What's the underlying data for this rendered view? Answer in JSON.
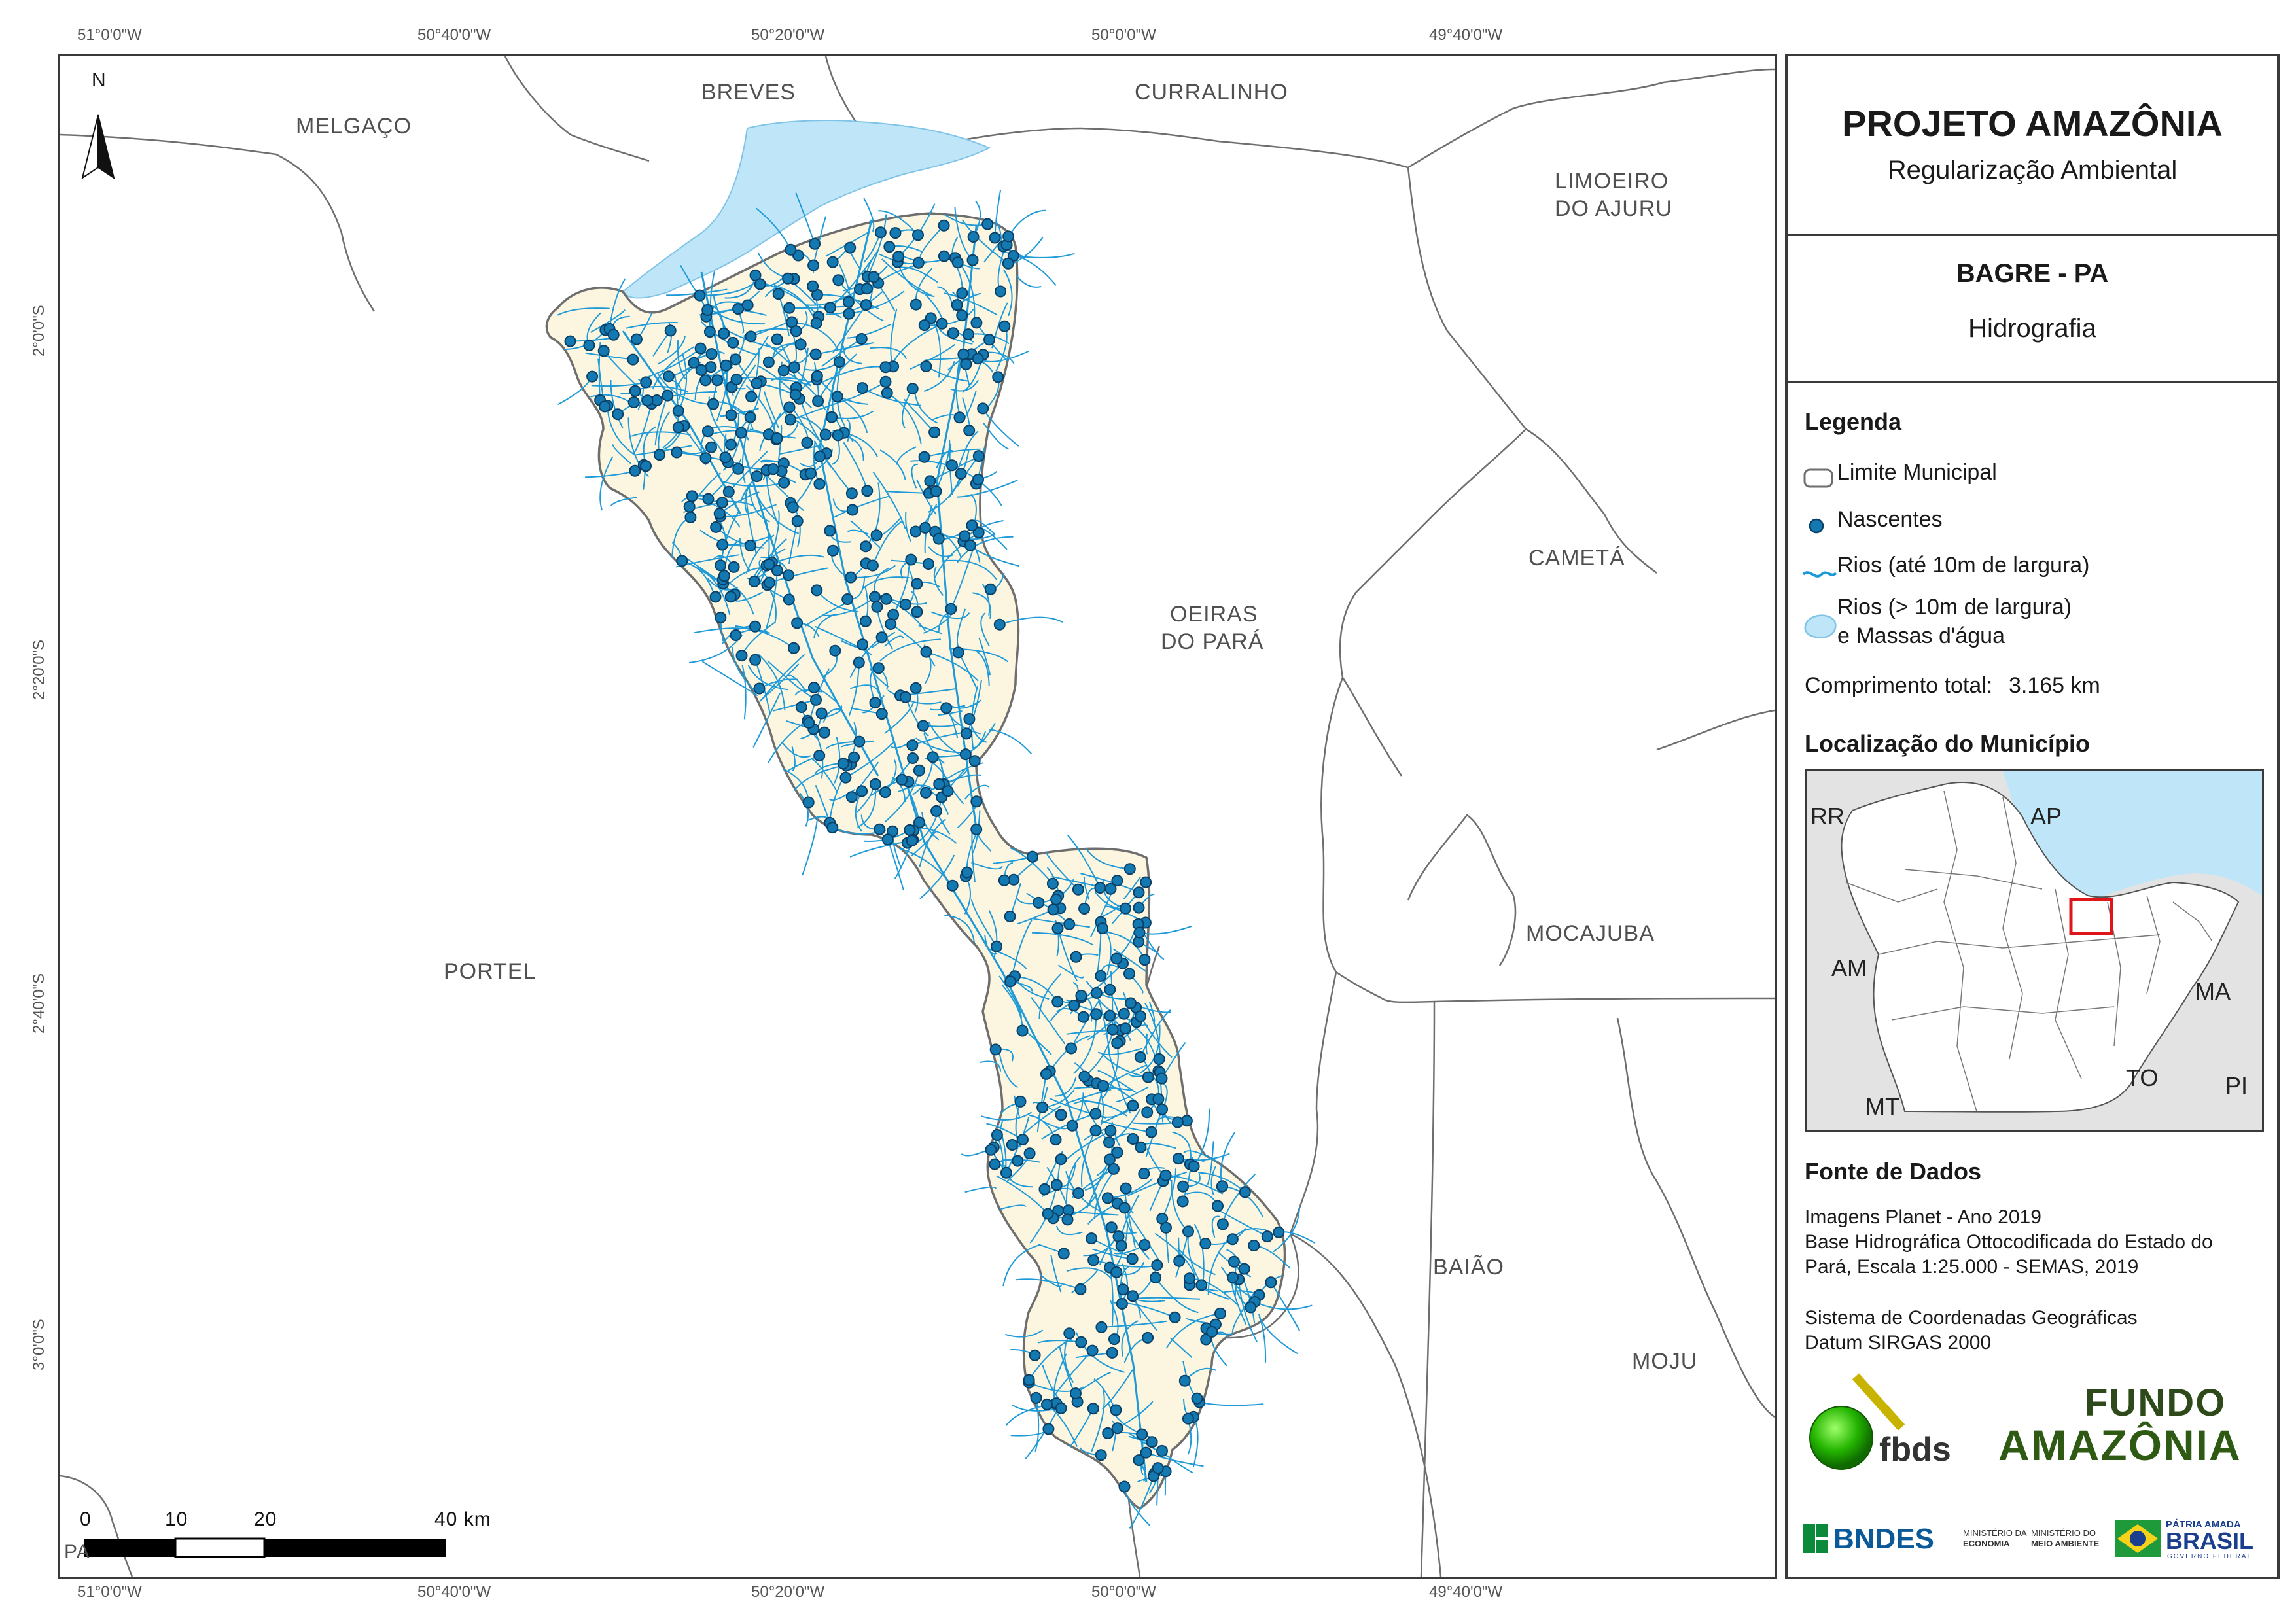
{
  "coordinates": {
    "top_lon": [
      "51°0'0\"W",
      "50°40'0\"W",
      "50°20'0\"W",
      "50°0'0\"W",
      "49°40'0\"W"
    ],
    "bottom_lon": [
      "51°0'0\"W",
      "50°40'0\"W",
      "50°20'0\"W",
      "50°0'0\"W",
      "49°40'0\"W"
    ],
    "left_lat": [
      "2°0'0\"S",
      "2°20'0\"S",
      "2°40'0\"S",
      "3°0'0\"S"
    ]
  },
  "map": {
    "north_label": "N",
    "places": {
      "melgaco": "MELGAÇO",
      "breves": "BREVES",
      "curralinho": "CURRALINHO",
      "limoeiro_1": "LIMOEIRO",
      "limoeiro_2": "DO AJURU",
      "oeiras_1": "OEIRAS",
      "oeiras_2": "DO PARÁ",
      "cameta": "CAMETÁ",
      "mocajuba": "MOCAJUBA",
      "portel": "PORTEL",
      "baiao": "BAIÃO",
      "moju": "MOJU",
      "pa_cut": "PA"
    },
    "scale_labels": [
      "0",
      "10",
      "20",
      "40 km"
    ],
    "colors": {
      "municipality_fill": "#fcf6e0",
      "river_line": "#1e9ad8",
      "spring_fill": "#1479b0",
      "water_body": "#bfe6f8"
    }
  },
  "panel": {
    "title": "PROJETO AMAZÔNIA",
    "subtitle": "Regularização Ambiental",
    "municipality": "BAGRE - PA",
    "theme": "Hidrografia",
    "legend_title": "Legenda",
    "legend": {
      "limit": "Limite Municipal",
      "springs": "Nascentes",
      "rivers_small": "Rios (até 10m de largura)",
      "rivers_large_1": "Rios (> 10m de largura)",
      "rivers_large_2": "e Massas d'água"
    },
    "length_label": "Comprimento total:",
    "length_value": "3.165 km",
    "location_title": "Localização do Município",
    "inset_states": {
      "rr": "RR",
      "ap": "AP",
      "am": "AM",
      "ma": "MA",
      "to": "TO",
      "mt": "MT",
      "pi": "PI"
    },
    "sources_title": "Fonte de Dados",
    "sources": [
      "Imagens Planet - Ano 2019",
      "Base Hidrográfica Ottocodificada do Estado do",
      "Pará, Escala 1:25.000 - SEMAS, 2019",
      "",
      "Sistema de Coordenadas Geográficas",
      "Datum SIRGAS 2000"
    ],
    "logos": {
      "fbds": "fbds",
      "fundo_1": "FUNDO",
      "fundo_2": "AMAZÔNIA",
      "bndes": "BNDES",
      "min_eco_1": "MINISTÉRIO DA",
      "min_eco_2": "ECONOMIA",
      "min_ma_1": "MINISTÉRIO DO",
      "min_ma_2": "MEIO AMBIENTE",
      "patria_1": "PÁTRIA AMADA",
      "patria_2": "BRASIL",
      "patria_3": "GOVERNO FEDERAL"
    }
  }
}
